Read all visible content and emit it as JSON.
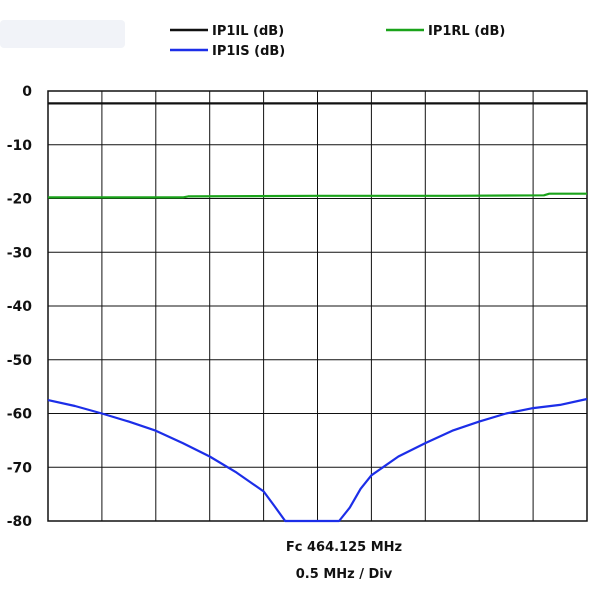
{
  "chart_data": {
    "type": "line",
    "legend_placement": "top",
    "grid": true,
    "ylim": [
      -80,
      0
    ],
    "yticks": [
      "0",
      "-10",
      "-20",
      "-30",
      "-40",
      "-50",
      "-60",
      "-70",
      "-80"
    ],
    "x_divisions": 10,
    "x_range": [
      -5,
      5
    ],
    "footer": {
      "center_frequency": "Fc 464.125 MHz",
      "scale": "0.5 MHz / Div"
    },
    "series": [
      {
        "name": "IP1IL (dB)",
        "color": "#111111",
        "x": [
          -5,
          5
        ],
        "y": [
          -2.3,
          -2.3
        ]
      },
      {
        "name": "IP1RL (dB)",
        "color": "#1aa31a",
        "x": [
          -5,
          -2.5,
          -2.4,
          0,
          2.5,
          4.2,
          4.3,
          5
        ],
        "y": [
          -19.8,
          -19.8,
          -19.6,
          -19.5,
          -19.5,
          -19.4,
          -19.1,
          -19.1
        ]
      },
      {
        "name": "IP1IS (dB)",
        "color": "#1c2ee8",
        "x": [
          -5,
          -4.5,
          -4,
          -3.5,
          -3,
          -2.5,
          -2,
          -1.5,
          -1,
          -0.8,
          -0.6,
          -0.4,
          -0.2,
          0,
          0.2,
          0.4,
          0.6,
          0.8,
          1,
          1.5,
          2,
          2.5,
          3,
          3.5,
          4,
          4.5,
          5
        ],
        "y": [
          -57.5,
          -58.6,
          -60,
          -61.5,
          -63.2,
          -65.5,
          -68,
          -71,
          -74.5,
          -77.2,
          -80,
          -80,
          -80,
          -80,
          -80,
          -80,
          -77.5,
          -74,
          -71.5,
          -68,
          -65.5,
          -63.2,
          -61.5,
          -60,
          -59,
          -58.4,
          -57.3
        ]
      }
    ]
  }
}
